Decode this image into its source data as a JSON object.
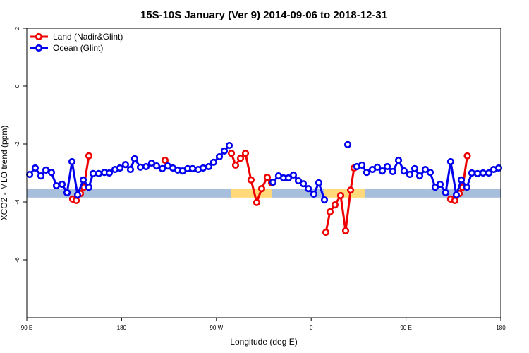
{
  "chart_data": {
    "type": "line",
    "title": "15S-10S January (Ver 9)   2014-09-06 to 2018-12-31",
    "x_label": "Longitude (deg E)",
    "y_label": "XCO2 - MLO trend (ppm)",
    "xlim": [
      90,
      540
    ],
    "xticks": [
      {
        "value": 90,
        "label": "90 E"
      },
      {
        "value": 180,
        "label": "180"
      },
      {
        "value": 270,
        "label": "90 W"
      },
      {
        "value": 360,
        "label": "0"
      },
      {
        "value": 450,
        "label": "90 E"
      },
      {
        "value": 540,
        "label": "180"
      }
    ],
    "ylim": [
      -8,
      2
    ],
    "yticks": [
      -6,
      -4,
      -2,
      0,
      2
    ],
    "legend": "top-left",
    "bands": [
      {
        "color": "#ffd97a",
        "x": [
          282,
          323
        ],
        "low": -3.85,
        "high": -3.56
      },
      {
        "color": "#ffd97a",
        "x": [
          372,
          411
        ],
        "low": -3.85,
        "high": -3.56
      },
      {
        "color": "#a7bfdc",
        "x": [
          90,
          283.5
        ],
        "low": -3.85,
        "high": -3.56
      },
      {
        "color": "#a7bfdc",
        "x": [
          323,
          372
        ],
        "low": -3.85,
        "high": -3.56
      },
      {
        "color": "#a7bfdc",
        "x": [
          411,
          540
        ],
        "low": -3.85,
        "high": -3.56
      }
    ],
    "series": [
      {
        "name": "Land (Nadir&Glint)",
        "color": "#ee0000",
        "x": [
          133.5,
          136.9,
          140.9,
          144.2,
          148.9,
          null,
          221.2,
          null,
          284.2,
          288.2,
          292.9,
          297.6,
          302.9,
          308.3,
          313.0,
          318.3,
          322.4,
          null,
          373.9,
          377.9,
          382.6,
          388.0,
          392.7,
          397.4,
          400.7,
          null,
          492.4,
          496.4,
          500.5,
          503.8,
          508.2
        ],
        "values": [
          -3.9,
          -3.95,
          -3.71,
          -3.49,
          -2.41,
          null,
          -2.56,
          null,
          -2.32,
          -2.73,
          -2.49,
          -2.32,
          -3.24,
          -4.02,
          -3.54,
          -3.15,
          -3.34,
          null,
          -5.05,
          -4.34,
          -4.1,
          -3.78,
          -5.0,
          -3.59,
          -2.83,
          null,
          -3.9,
          -3.95,
          -3.71,
          -3.49,
          -2.41
        ]
      },
      {
        "name": "Ocean (Glint)",
        "color": "#0000ee",
        "x": [
          92.7,
          98.0,
          103.4,
          108.1,
          113.4,
          118.1,
          123.5,
          128.2,
          132.9,
          138.2,
          143.6,
          148.9,
          152.9,
          158.3,
          163.7,
          168.3,
          173.7,
          178.4,
          183.7,
          188.4,
          192.4,
          197.8,
          203.2,
          208.5,
          213.2,
          218.6,
          223.9,
          228.6,
          233.3,
          238.0,
          242.7,
          247.4,
          252.7,
          257.4,
          262.8,
          267.4,
          272.8,
          277.5,
          282.2,
          null,
          323.7,
          329.0,
          333.7,
          338.4,
          343.1,
          347.8,
          352.5,
          357.2,
          362.5,
          367.2,
          372.6,
          null,
          394.7,
          null,
          403.4,
          408.1,
          412.7,
          418.1,
          422.8,
          427.5,
          432.2,
          437.5,
          442.9,
          448.2,
          453.6,
          458.3,
          463.0,
          468.3,
          473.0,
          477.7,
          482.4,
          487.7,
          492.4,
          497.8,
          502.5,
          507.8,
          512.5,
          517.9,
          523.2,
          528.6,
          533.3,
          538.0
        ],
        "values": [
          -3.05,
          -2.83,
          -3.1,
          -2.9,
          -2.98,
          -3.44,
          -3.39,
          -3.68,
          -2.61,
          -3.76,
          -3.24,
          -3.49,
          -3.02,
          -3.02,
          -2.98,
          -3.0,
          -2.88,
          -2.83,
          -2.71,
          -2.88,
          -2.51,
          -2.8,
          -2.78,
          -2.66,
          -2.76,
          -2.85,
          -2.76,
          -2.83,
          -2.9,
          -2.93,
          -2.85,
          -2.85,
          -2.88,
          -2.83,
          -2.78,
          -2.63,
          -2.44,
          -2.24,
          -2.05,
          null,
          -3.32,
          -3.1,
          -3.17,
          -3.17,
          -3.07,
          -3.27,
          -3.37,
          -3.54,
          -3.73,
          -3.34,
          -3.93,
          null,
          -2.02,
          null,
          -2.78,
          -2.73,
          -2.98,
          -2.88,
          -2.8,
          -2.93,
          -2.78,
          -2.95,
          -2.56,
          -2.93,
          -3.05,
          -2.85,
          -3.1,
          -2.88,
          -2.98,
          -3.49,
          -3.39,
          -3.68,
          -2.61,
          -3.76,
          -3.24,
          -3.49,
          -3.0,
          -3.02,
          -3.0,
          -3.0,
          -2.88,
          -2.83
        ]
      }
    ]
  }
}
